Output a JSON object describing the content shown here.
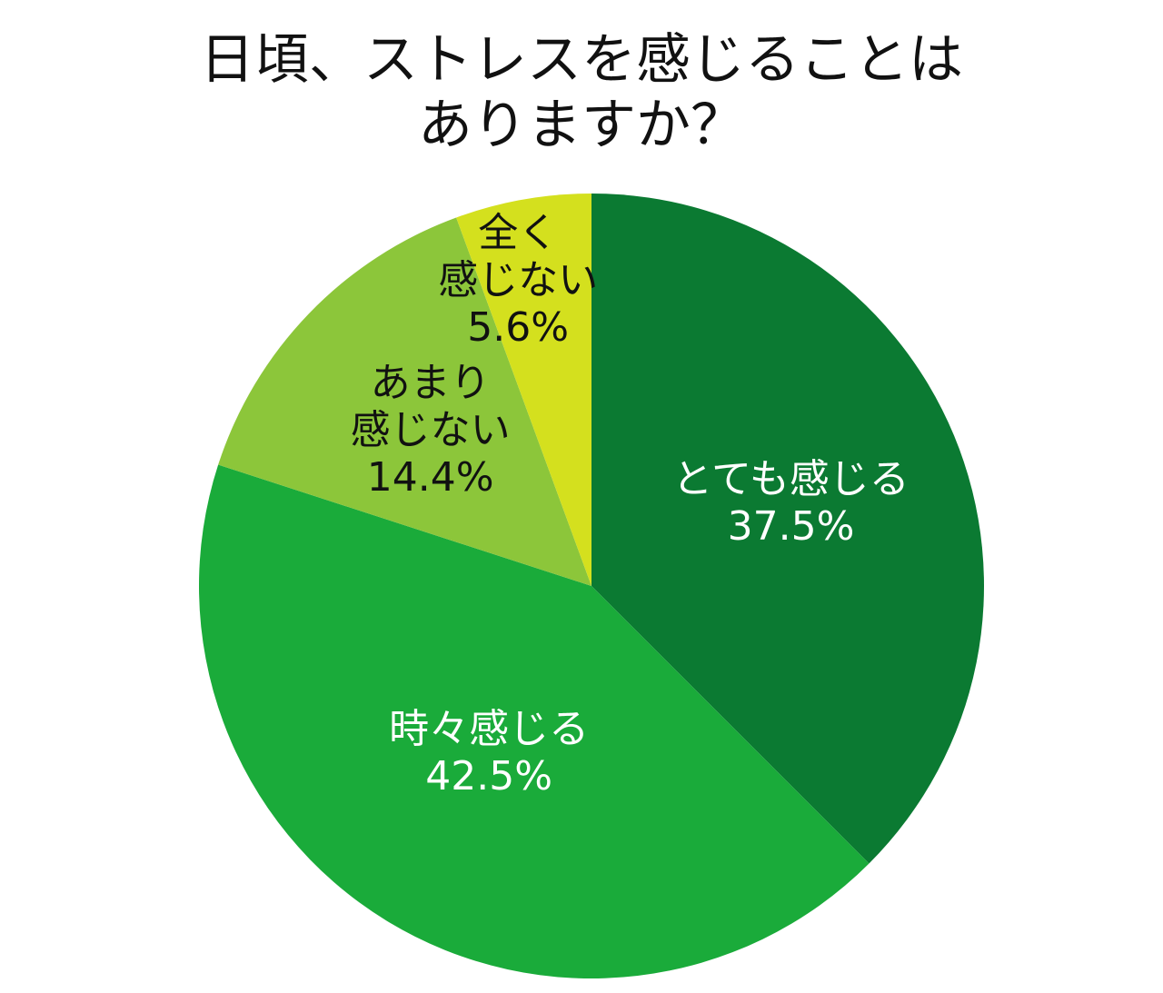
{
  "chart_data": {
    "type": "pie",
    "title": "日頃、ストレスを感じることは\nありますか？",
    "categories": [
      "とても感じる",
      "時々感じる",
      "あまり\n感じない",
      "全く\n感じない"
    ],
    "values": [
      37.5,
      42.5,
      14.4,
      5.6
    ],
    "value_labels": [
      "37.5%",
      "42.5%",
      "14.4%",
      "5.6%"
    ],
    "colors": [
      "#0b7a32",
      "#1aab3a",
      "#8cc63a",
      "#d4e01e"
    ]
  }
}
